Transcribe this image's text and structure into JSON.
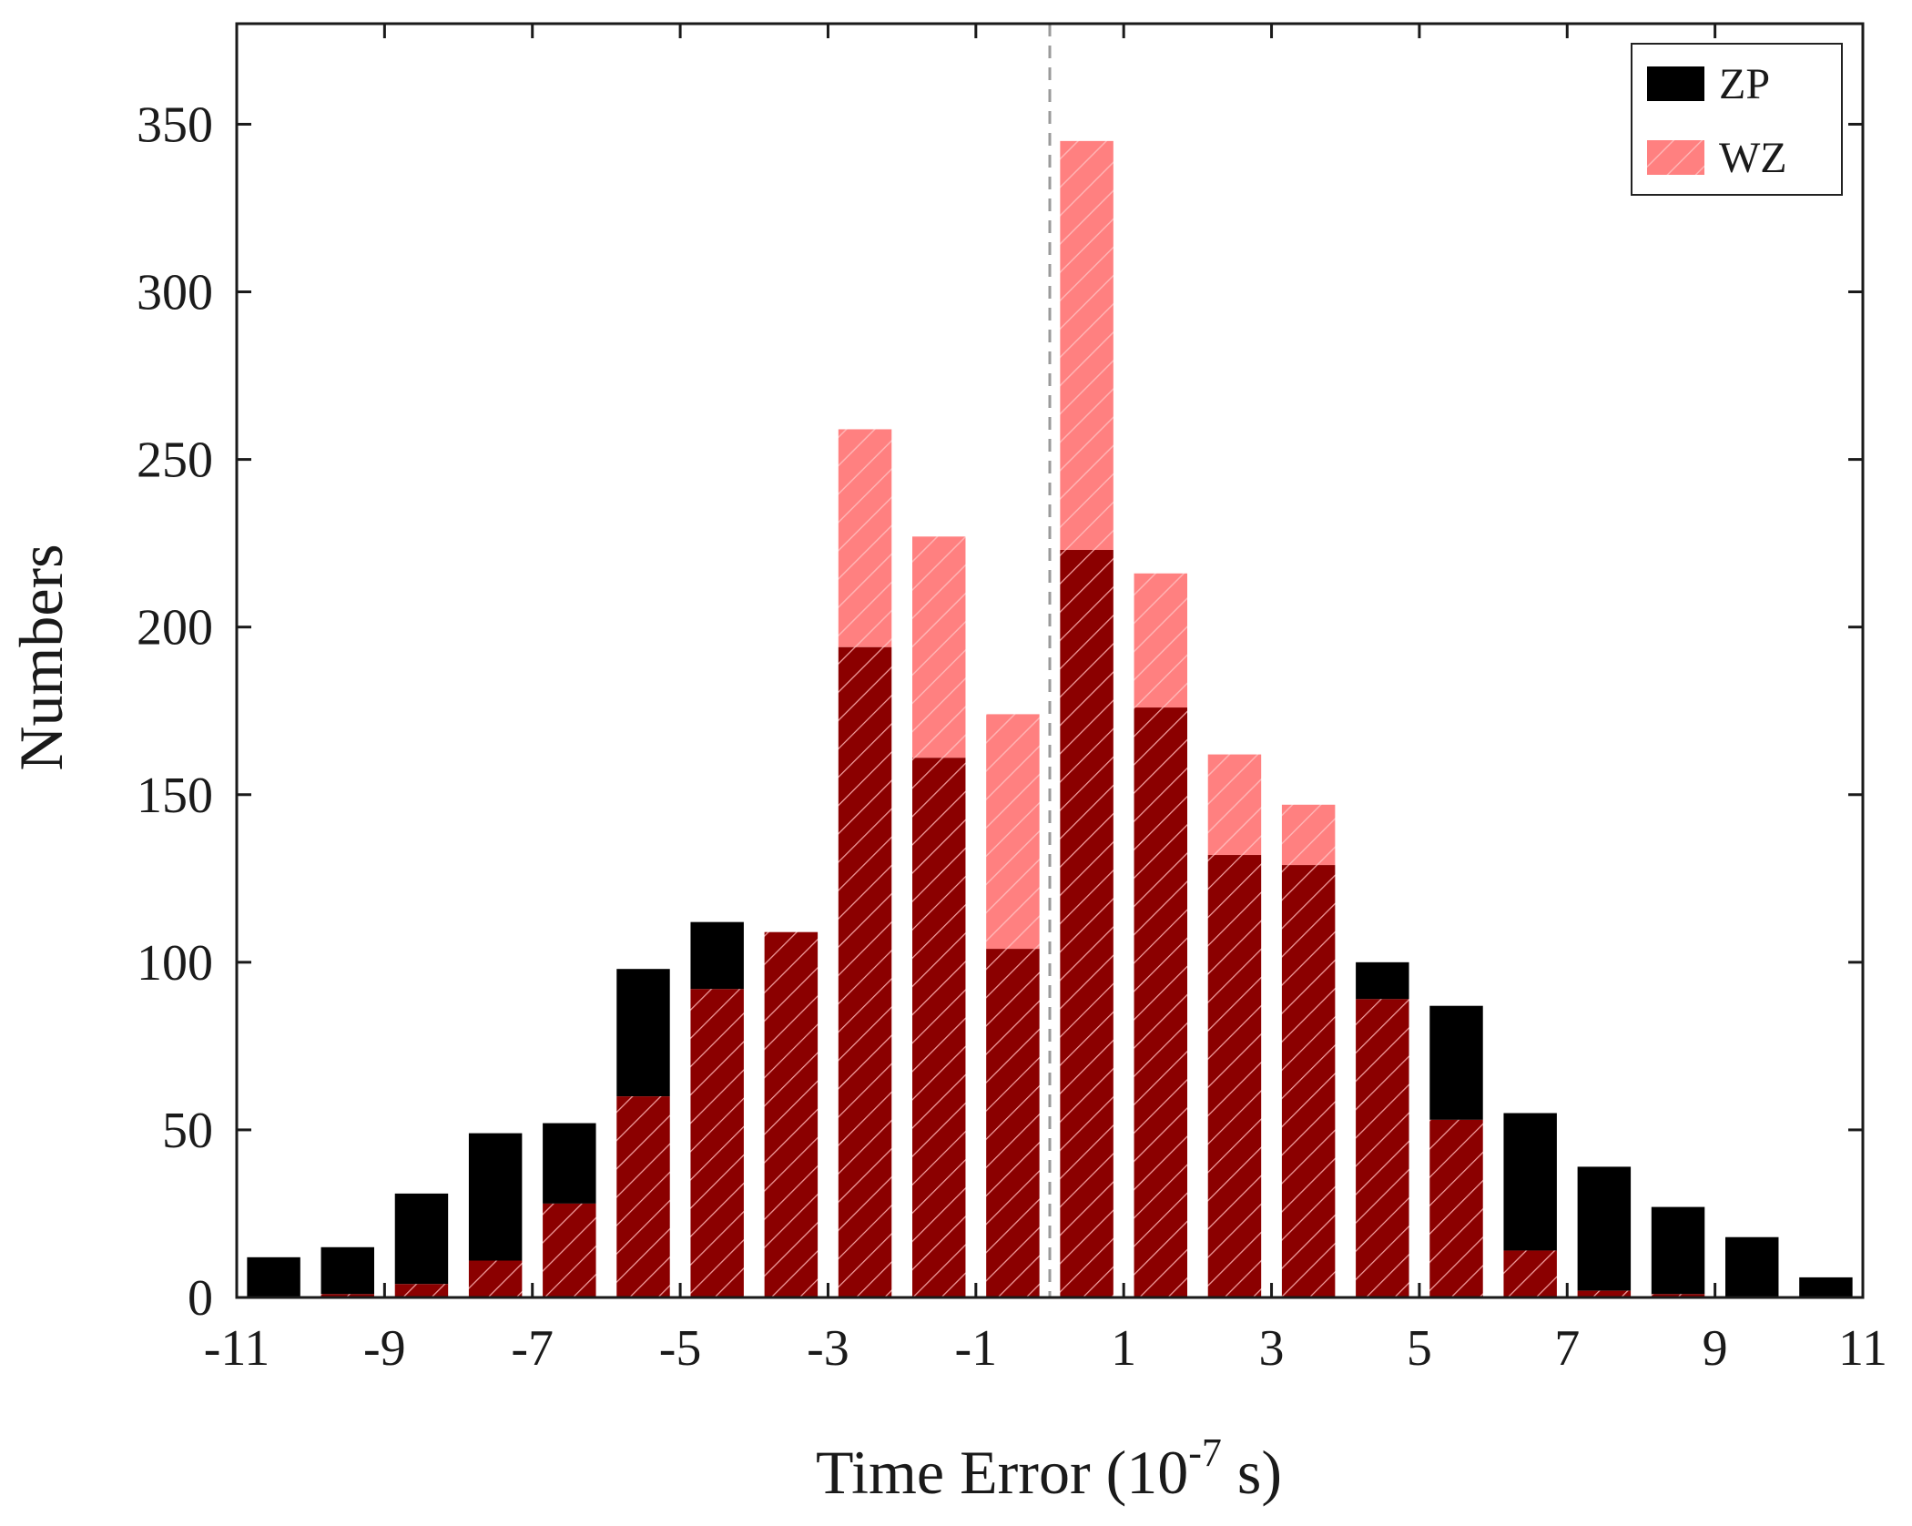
{
  "chart_data": {
    "type": "bar",
    "xlabel_main": "Time Error (10",
    "xlabel_sup": "-7",
    "xlabel_end": " s)",
    "ylabel": "Numbers",
    "xlim": [
      -11,
      11
    ],
    "ylim": [
      0,
      380
    ],
    "x_ticks": [
      -11,
      -9,
      -7,
      -5,
      -3,
      -1,
      1,
      3,
      5,
      7,
      9,
      11
    ],
    "y_ticks": [
      0,
      50,
      100,
      150,
      200,
      250,
      300,
      350
    ],
    "bin_width": 1,
    "reference_line_x": 0,
    "bin_centers": [
      -10.5,
      -9.5,
      -8.5,
      -7.5,
      -6.5,
      -5.5,
      -4.5,
      -3.5,
      -2.5,
      -1.5,
      -0.5,
      0.5,
      1.5,
      2.5,
      3.5,
      4.5,
      5.5,
      6.5,
      7.5,
      8.5,
      9.5,
      10.5
    ],
    "series": [
      {
        "name": "ZP",
        "color": "#000000",
        "values": [
          12,
          15,
          31,
          49,
          52,
          98,
          112,
          109,
          194,
          161,
          104,
          223,
          176,
          132,
          129,
          100,
          87,
          55,
          39,
          27,
          18,
          6
        ]
      },
      {
        "name": "WZ",
        "color": "#ff6b6b",
        "overlap_color": "#8b0000",
        "hatch_color": "#ffb0b0",
        "values": [
          0,
          1,
          4,
          11,
          28,
          60,
          92,
          109,
          259,
          227,
          174,
          345,
          216,
          162,
          147,
          89,
          53,
          14,
          2,
          1,
          0,
          0
        ]
      }
    ],
    "legend_position": "top-right",
    "grid": false
  }
}
